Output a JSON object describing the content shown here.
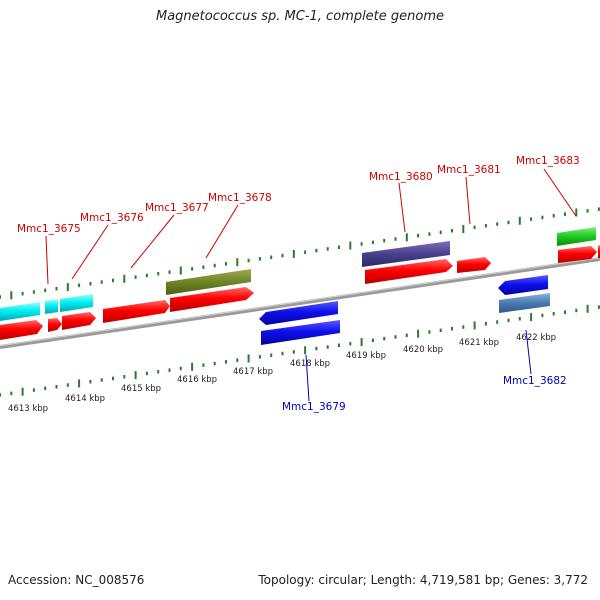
{
  "title": "Magnetococcus sp. MC-1, complete genome",
  "footer": {
    "accession": "Accession: NC_008576",
    "summary": "Topology: circular; Length: 4,719,581 bp; Genes: 3,772"
  },
  "scale": {
    "unit": "kbp",
    "ticks": [
      "4613 kbp",
      "4614 kbp",
      "4615 kbp",
      "4616 kbp",
      "4617 kbp",
      "4618 kbp",
      "4619 kbp",
      "4620 kbp",
      "4621 kbp",
      "4622 kbp"
    ]
  },
  "colors": {
    "forward_label": "#cc0000",
    "reverse_label": "#0000bb",
    "tick": "#2a7a2a",
    "axis": "#888888"
  },
  "genes": [
    {
      "label": "Mmc1_3675",
      "strand": "forward"
    },
    {
      "label": "Mmc1_3676",
      "strand": "forward"
    },
    {
      "label": "Mmc1_3677",
      "strand": "forward"
    },
    {
      "label": "Mmc1_3678",
      "strand": "forward"
    },
    {
      "label": "Mmc1_3679",
      "strand": "reverse"
    },
    {
      "label": "Mmc1_3680",
      "strand": "forward"
    },
    {
      "label": "Mmc1_3681",
      "strand": "forward"
    },
    {
      "label": "Mmc1_3682",
      "strand": "reverse"
    },
    {
      "label": "Mmc1_3683",
      "strand": "forward"
    }
  ]
}
